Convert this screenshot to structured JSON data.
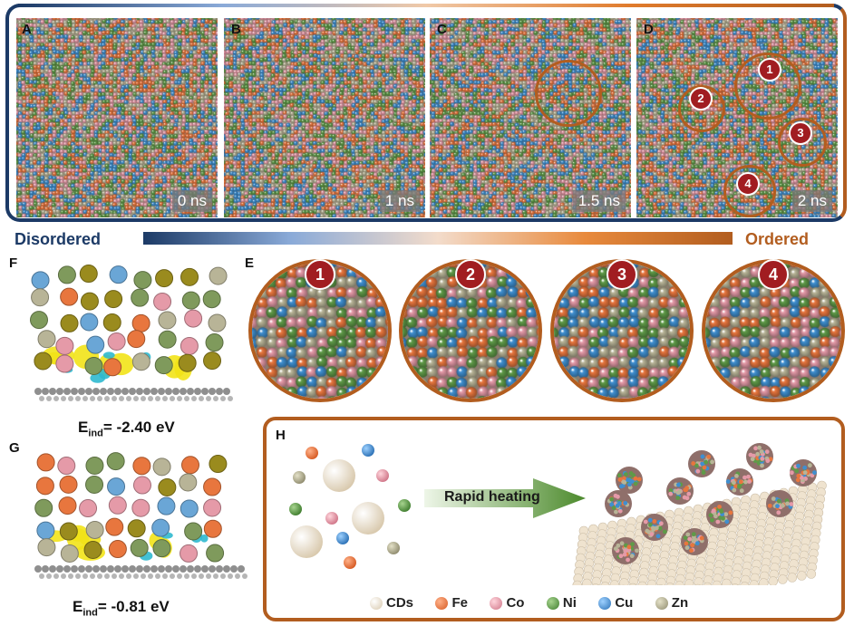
{
  "panels_top": [
    {
      "label": "A",
      "time": "0 ns"
    },
    {
      "label": "B",
      "time": "1 ns"
    },
    {
      "label": "C",
      "time": "1.5 ns"
    },
    {
      "label": "D",
      "time": "2 ns"
    }
  ],
  "gradient_bar": {
    "left": "Disordered",
    "right": "Ordered"
  },
  "zoom_panel": {
    "label": "E",
    "regions": [
      "1",
      "2",
      "3",
      "4"
    ]
  },
  "panel_f": {
    "label": "F",
    "energy_prefix": "E",
    "energy_sub": "ind",
    "energy_value": "= -2.40 eV"
  },
  "panel_g": {
    "label": "G",
    "energy_prefix": "E",
    "energy_sub": "ind",
    "energy_value": "= -0.81 eV"
  },
  "panel_h": {
    "label": "H",
    "arrow_text": "Rapid heating",
    "legend": [
      {
        "name": "CDs",
        "color": "#efe3cf"
      },
      {
        "name": "Fe",
        "color": "#e8763e"
      },
      {
        "name": "Co",
        "color": "#e59aa8"
      },
      {
        "name": "Ni",
        "color": "#5f9a48"
      },
      {
        "name": "Cu",
        "color": "#3f8fd0"
      },
      {
        "name": "Zn",
        "color": "#b8b497"
      }
    ]
  },
  "colors": {
    "navy": "#1c3a66",
    "brown": "#b25d1f",
    "badge": "#a11d21"
  }
}
